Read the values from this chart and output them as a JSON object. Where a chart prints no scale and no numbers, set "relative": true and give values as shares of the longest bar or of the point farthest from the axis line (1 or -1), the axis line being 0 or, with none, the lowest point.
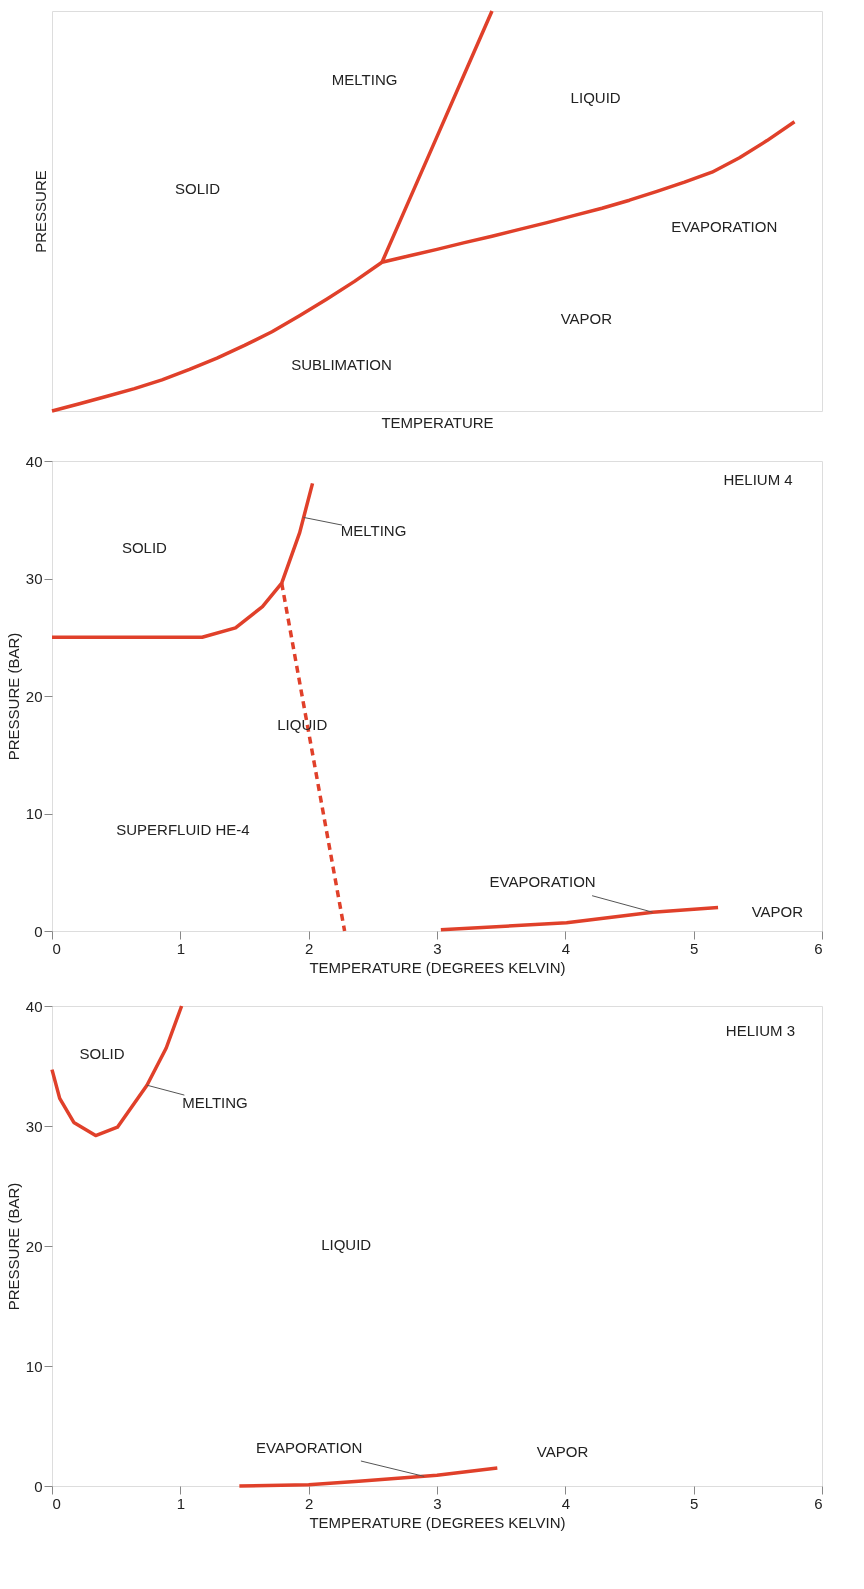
{
  "chart_data": [
    {
      "type": "line",
      "relative": true,
      "xlabel": "TEMPERATURE",
      "ylabel": "PRESSURE",
      "grid": false,
      "categories": [
        null,
        null,
        null,
        null,
        null,
        null,
        null,
        null,
        null,
        null,
        null,
        null,
        null,
        null,
        null,
        null,
        null,
        null,
        null,
        null,
        null,
        null,
        null,
        null,
        null,
        null,
        null,
        null,
        null
      ],
      "series": [
        {
          "color": "#e0402a",
          "values": [
            0,
            0.018,
            0.037,
            0.056,
            0.078,
            0.104,
            0.132,
            0.164,
            0.198,
            0.238,
            0.28,
            0.324,
            0.372,
            0.388,
            0.404,
            0.421,
            0.437,
            0.454,
            0.471,
            0.489,
            0.507,
            0.527,
            0.549,
            0.572,
            0.597,
            0.633,
            0.676,
            0.723,
            null
          ]
        },
        {
          "color": "#e0402a",
          "values": [
            null,
            null,
            null,
            null,
            null,
            null,
            null,
            null,
            null,
            null,
            null,
            null,
            0.372,
            0.529,
            0.686,
            0.843,
            1.0,
            null,
            null,
            null,
            null,
            null,
            null,
            null,
            null,
            null,
            null,
            null,
            null
          ]
        }
      ],
      "annotations": [
        "MELTING",
        "LIQUID",
        "SOLID",
        "EVAPORATION",
        "VAPOR",
        "SUBLIMATION"
      ]
    },
    {
      "type": "line",
      "xlabel": "TEMPERATURE (DEGREES KELVIN)",
      "ylabel": "PRESSURE (BAR)",
      "xlim": [
        0,
        6
      ],
      "ylim": [
        0,
        40
      ],
      "xticks": [
        0,
        1,
        2,
        3,
        4,
        5,
        6
      ],
      "yticks": [
        0,
        10,
        20,
        30,
        40
      ],
      "grid": false,
      "series": [
        {
          "color": "#e0402a",
          "x": [
            0,
            1.17,
            1.43,
            1.64,
            1.79,
            1.93,
            2.03
          ],
          "values": [
            25.0,
            25.0,
            25.8,
            27.6,
            29.6,
            33.9,
            38.1
          ]
        },
        {
          "color": "#e0402a",
          "line_style": "dashed",
          "x": [
            1.79,
            2.28
          ],
          "values": [
            29.6,
            0
          ]
        },
        {
          "color": "#e0402a",
          "x": [
            3.03,
            4.01,
            4.68,
            5.19
          ],
          "values": [
            0.1,
            0.7,
            1.6,
            2.0
          ]
        }
      ],
      "annotations": [
        "HELIUM 4",
        "SOLID",
        "LIQUID",
        "SUPERFLUID  HE-4",
        "VAPOR",
        {
          "text": "MELTING",
          "x": 1.96,
          "y": 35.2
        },
        {
          "text": "EVAPORATION",
          "x": 4.68,
          "y": 1.6
        }
      ]
    },
    {
      "type": "line",
      "xlabel": "TEMPERATURE (DEGREES KELVIN)",
      "ylabel": "PRESSURE (BAR)",
      "xlim": [
        0,
        6
      ],
      "ylim": [
        0,
        40
      ],
      "xticks": [
        0,
        1,
        2,
        3,
        4,
        5,
        6
      ],
      "yticks": [
        0,
        10,
        20,
        30,
        40
      ],
      "grid": false,
      "series": [
        {
          "color": "#e0402a",
          "x": [
            0,
            0.06,
            0.17,
            0.34,
            0.51,
            0.74,
            0.89,
            1.01
          ],
          "values": [
            34.7,
            32.3,
            30.3,
            29.2,
            29.9,
            33.4,
            36.5,
            40
          ]
        },
        {
          "color": "#e0402a",
          "x": [
            1.46,
            2.0,
            2.39,
            3.0,
            3.47
          ],
          "values": [
            0,
            0.1,
            0.4,
            0.9,
            1.5
          ]
        }
      ],
      "annotations": [
        "HELIUM 3",
        "SOLID",
        "LIQUID",
        "VAPOR",
        {
          "text": "MELTING",
          "x": 0.74,
          "y": 33.4
        },
        {
          "text": "EVAPORATION",
          "x": 2.9,
          "y": 0.8
        }
      ]
    }
  ]
}
